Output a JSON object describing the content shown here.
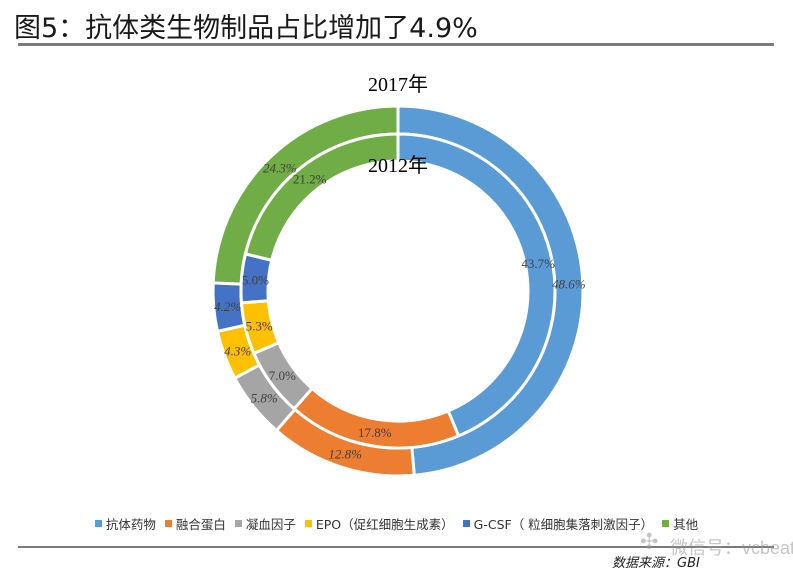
{
  "header": {
    "title": "图5：抗体类生物制品占比增加了4.9%"
  },
  "chart_data": {
    "type": "donut",
    "title": "图5：抗体类生物制品占比增加了4.9%",
    "categories": [
      "抗体药物",
      "融合蛋白",
      "凝血因子",
      "EPO（促红细胞生成素）",
      "G-CSF（ 粒细胞集落刺激因子）",
      "其他"
    ],
    "colors": [
      "#5b9bd5",
      "#ed7d31",
      "#a5a5a5",
      "#ffc000",
      "#4472c4",
      "#70ad47"
    ],
    "series": [
      {
        "name": "2017年",
        "ring": "outer",
        "values": [
          48.6,
          12.8,
          5.8,
          4.3,
          4.2,
          24.3
        ],
        "labels": [
          "48.6%",
          "12.8%",
          "5.8%",
          "4.3%",
          "4.2%",
          "24.3%"
        ]
      },
      {
        "name": "2012年",
        "ring": "inner",
        "values": [
          43.7,
          17.8,
          7.0,
          5.3,
          5.0,
          21.2
        ],
        "labels": [
          "43.7%",
          "17.8%",
          "7.0%",
          "5.3%",
          "5.0%",
          "21.2%"
        ]
      }
    ]
  },
  "legend": {
    "items": [
      "抗体药物",
      "融合蛋白",
      "凝血因子",
      "EPO（促红细胞生成素）",
      "G-CSF（ 粒细胞集落刺激因子）",
      "其他"
    ]
  },
  "footer": {
    "source": "数据来源：GBI",
    "watermark": "微信号：vcbeat",
    "watermark_icon": "wechat-icon"
  }
}
